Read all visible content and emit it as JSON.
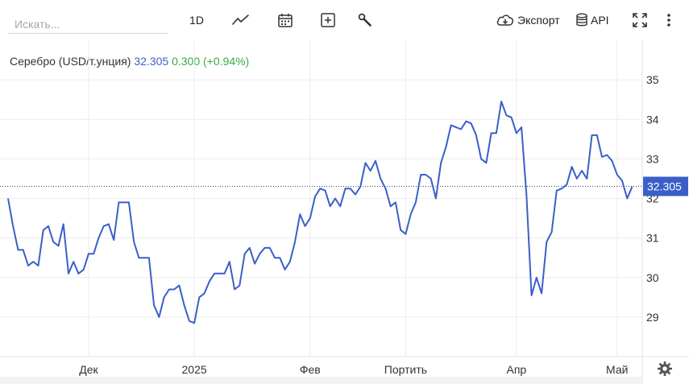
{
  "toolbar": {
    "search_placeholder": "Искать...",
    "interval_label": "1D",
    "export_label": "Экспорт",
    "api_label": "API",
    "icons": [
      "line-chart-icon",
      "calendar-icon",
      "add-indicator-icon",
      "wrench-icon",
      "cloud-download-icon",
      "database-icon",
      "fullscreen-icon",
      "more-vertical-icon",
      "gear-icon"
    ]
  },
  "legend": {
    "name": "Серебро (USD/т.унция)",
    "price": "32.305",
    "change": "0.300",
    "change_pct": "(+0.94%)"
  },
  "colors": {
    "line": "#3a5fc8",
    "price_text": "#3a5fc8",
    "change_text": "#3aa845",
    "badge_bg": "#3a5fc8",
    "grid": "#ececec"
  },
  "chart_data": {
    "type": "line",
    "ylim": [
      28.0,
      36.0
    ],
    "x_index_range": [
      0,
      126
    ],
    "yticks": [
      29,
      30,
      31,
      32,
      33,
      34,
      35
    ],
    "ytick_labels": [
      "29",
      "30",
      "31",
      "32",
      "33",
      "34",
      "35"
    ],
    "xticks": [
      {
        "index": 16,
        "label": "Дек"
      },
      {
        "index": 37,
        "label": "2025"
      },
      {
        "index": 60,
        "label": "Фев"
      },
      {
        "index": 79,
        "label": "Портить"
      },
      {
        "index": 101,
        "label": "Апр"
      },
      {
        "index": 121,
        "label": "Май"
      }
    ],
    "last_value": 32.305,
    "last_label": "32.305",
    "grid": true,
    "series": [
      {
        "values": [
          32.0,
          31.3,
          30.7,
          30.7,
          30.3,
          30.4,
          30.3,
          31.2,
          31.3,
          30.9,
          30.8,
          31.35,
          30.1,
          30.4,
          30.1,
          30.2,
          30.6,
          30.6,
          31.0,
          31.3,
          31.35,
          30.95,
          31.9,
          31.9,
          31.9,
          30.9,
          30.5,
          30.5,
          30.5,
          29.3,
          29.0,
          29.5,
          29.7,
          29.7,
          29.8,
          29.3,
          28.9,
          28.85,
          29.5,
          29.6,
          29.9,
          30.1,
          30.1,
          30.1,
          30.4,
          29.7,
          29.8,
          30.6,
          30.75,
          30.35,
          30.6,
          30.75,
          30.75,
          30.5,
          30.5,
          30.2,
          30.4,
          30.9,
          31.6,
          31.3,
          31.5,
          32.05,
          32.25,
          32.2,
          31.8,
          32.0,
          31.8,
          32.25,
          32.25,
          32.1,
          32.3,
          32.9,
          32.7,
          32.95,
          32.5,
          32.25,
          31.8,
          31.9,
          31.2,
          31.1,
          31.6,
          31.9,
          32.6,
          32.6,
          32.5,
          32.0,
          32.9,
          33.3,
          33.85,
          33.8,
          33.75,
          33.95,
          33.9,
          33.6,
          33.0,
          32.9,
          33.65,
          33.65,
          34.45,
          34.1,
          34.05,
          33.65,
          33.8,
          32.1,
          29.55,
          30.0,
          29.6,
          30.9,
          31.15,
          32.2,
          32.25,
          32.35,
          32.8,
          32.5,
          32.7,
          32.5,
          33.6,
          33.6,
          33.05,
          33.1,
          32.95,
          32.6,
          32.45,
          32.0,
          32.3
        ]
      }
    ]
  }
}
